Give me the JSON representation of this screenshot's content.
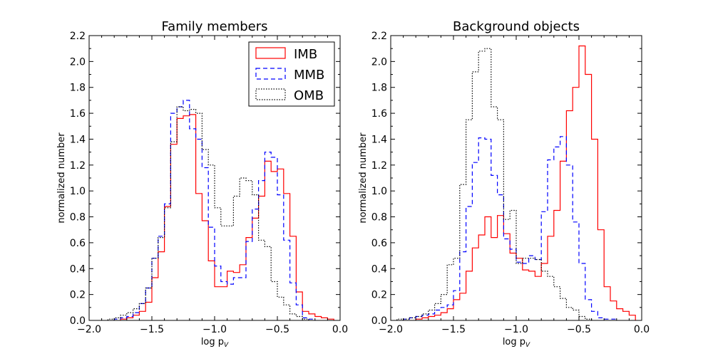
{
  "chart_data": [
    {
      "type": "histogram-step",
      "title": "Family members",
      "xlabel": "log p",
      "xlabel_sub": "V",
      "ylabel": "normalized number",
      "xlim": [
        -2.0,
        0.0
      ],
      "ylim": [
        0.0,
        2.2
      ],
      "xticks": [
        "−2.0",
        "−1.5",
        "−1.0",
        "−0.5",
        "0.0"
      ],
      "xtick_values": [
        -2.0,
        -1.5,
        -1.0,
        -0.5,
        0.0
      ],
      "yticks": [
        "0.0",
        "0.2",
        "0.4",
        "0.6",
        "0.8",
        "1.0",
        "1.2",
        "1.4",
        "1.6",
        "1.8",
        "2.0",
        "2.2"
      ],
      "ytick_values": [
        0.0,
        0.2,
        0.4,
        0.6,
        0.8,
        1.0,
        1.2,
        1.4,
        1.6,
        1.8,
        2.0,
        2.2
      ],
      "legend": {
        "position": "upper right",
        "entries": [
          "IMB",
          "MMB",
          "OMB"
        ]
      },
      "series": [
        {
          "name": "IMB",
          "color": "#ff0000",
          "dash": "solid",
          "edges": [
            -1.75,
            -1.7,
            -1.65,
            -1.6,
            -1.55,
            -1.5,
            -1.45,
            -1.4,
            -1.35,
            -1.3,
            -1.25,
            -1.2,
            -1.15,
            -1.1,
            -1.05,
            -1.0,
            -0.95,
            -0.9,
            -0.85,
            -0.8,
            -0.75,
            -0.7,
            -0.65,
            -0.6,
            -0.55,
            -0.5,
            -0.45,
            -0.4,
            -0.35,
            -0.3,
            -0.25,
            -0.2,
            -0.15,
            -0.1,
            -0.05
          ],
          "values": [
            0.01,
            0.02,
            0.04,
            0.07,
            0.14,
            0.33,
            0.53,
            0.88,
            1.36,
            1.56,
            1.58,
            1.59,
            0.98,
            0.77,
            0.46,
            0.26,
            0.26,
            0.38,
            0.37,
            0.43,
            0.64,
            0.79,
            0.96,
            1.23,
            1.15,
            1.17,
            0.98,
            0.65,
            0.22,
            0.07,
            0.05,
            0.03,
            0.02,
            0.01
          ]
        },
        {
          "name": "MMB",
          "color": "#0000ff",
          "dash": "dashed",
          "edges": [
            -1.8,
            -1.75,
            -1.7,
            -1.65,
            -1.6,
            -1.55,
            -1.5,
            -1.45,
            -1.4,
            -1.35,
            -1.3,
            -1.25,
            -1.2,
            -1.15,
            -1.1,
            -1.05,
            -1.0,
            -0.95,
            -0.9,
            -0.85,
            -0.8,
            -0.75,
            -0.7,
            -0.65,
            -0.6,
            -0.55,
            -0.5,
            -0.45,
            -0.4,
            -0.35,
            -0.3,
            -0.25,
            -0.2
          ],
          "values": [
            0.01,
            0.02,
            0.03,
            0.06,
            0.13,
            0.25,
            0.48,
            0.65,
            0.9,
            1.6,
            1.65,
            1.7,
            1.48,
            1.4,
            1.18,
            0.72,
            0.42,
            0.3,
            0.28,
            0.33,
            0.33,
            0.61,
            0.86,
            1.08,
            1.3,
            1.26,
            0.97,
            0.62,
            0.29,
            0.12,
            0.02,
            0.01
          ]
        },
        {
          "name": "OMB",
          "color": "#000000",
          "dash": "dotted",
          "edges": [
            -1.85,
            -1.8,
            -1.75,
            -1.7,
            -1.65,
            -1.6,
            -1.55,
            -1.5,
            -1.45,
            -1.4,
            -1.35,
            -1.3,
            -1.25,
            -1.2,
            -1.15,
            -1.1,
            -1.05,
            -1.0,
            -0.95,
            -0.9,
            -0.85,
            -0.8,
            -0.75,
            -0.7,
            -0.65,
            -0.6,
            -0.55,
            -0.5,
            -0.45,
            -0.4,
            -0.35,
            -0.3,
            -0.25
          ],
          "values": [
            0.01,
            0.02,
            0.04,
            0.06,
            0.09,
            0.13,
            0.25,
            0.48,
            0.64,
            0.87,
            1.38,
            1.65,
            1.62,
            1.63,
            1.6,
            1.32,
            1.2,
            0.87,
            0.73,
            0.73,
            0.96,
            1.1,
            1.08,
            0.97,
            0.62,
            0.57,
            0.3,
            0.18,
            0.12,
            0.05,
            0.03,
            0.01
          ]
        }
      ]
    },
    {
      "type": "histogram-step",
      "title": "Background objects",
      "xlabel": "log p",
      "xlabel_sub": "V",
      "ylabel": "normalized number",
      "xlim": [
        -2.0,
        0.0
      ],
      "ylim": [
        0.0,
        2.2
      ],
      "xticks": [
        "−2.0",
        "−1.5",
        "−1.0",
        "−0.5",
        "0.0"
      ],
      "xtick_values": [
        -2.0,
        -1.5,
        -1.0,
        -0.5,
        0.0
      ],
      "yticks": [
        "0.0",
        "0.2",
        "0.4",
        "0.6",
        "0.8",
        "1.0",
        "1.2",
        "1.4",
        "1.6",
        "1.8",
        "2.0",
        "2.2"
      ],
      "ytick_values": [
        0.0,
        0.2,
        0.4,
        0.6,
        0.8,
        1.0,
        1.2,
        1.4,
        1.6,
        1.8,
        2.0,
        2.2
      ],
      "legend": null,
      "series": [
        {
          "name": "IMB",
          "color": "#ff0000",
          "dash": "solid",
          "edges": [
            -1.8,
            -1.75,
            -1.7,
            -1.65,
            -1.6,
            -1.55,
            -1.5,
            -1.45,
            -1.4,
            -1.35,
            -1.3,
            -1.25,
            -1.2,
            -1.15,
            -1.1,
            -1.05,
            -1.0,
            -0.95,
            -0.9,
            -0.85,
            -0.8,
            -0.75,
            -0.7,
            -0.65,
            -0.6,
            -0.55,
            -0.5,
            -0.45,
            -0.4,
            -0.35,
            -0.3,
            -0.25,
            -0.2,
            -0.15,
            -0.1,
            -0.05
          ],
          "values": [
            0.01,
            0.02,
            0.03,
            0.04,
            0.06,
            0.09,
            0.16,
            0.21,
            0.38,
            0.56,
            0.66,
            0.8,
            0.64,
            0.81,
            0.67,
            0.52,
            0.48,
            0.39,
            0.38,
            0.34,
            0.44,
            0.65,
            0.85,
            1.23,
            1.62,
            1.8,
            2.12,
            1.9,
            1.4,
            0.7,
            0.26,
            0.15,
            0.09,
            0.07,
            0.04
          ]
        },
        {
          "name": "MMB",
          "color": "#0000ff",
          "dash": "dashed",
          "edges": [
            -1.9,
            -1.85,
            -1.8,
            -1.75,
            -1.7,
            -1.65,
            -1.6,
            -1.55,
            -1.5,
            -1.45,
            -1.4,
            -1.35,
            -1.3,
            -1.25,
            -1.2,
            -1.15,
            -1.1,
            -1.05,
            -1.0,
            -0.95,
            -0.9,
            -0.85,
            -0.8,
            -0.75,
            -0.7,
            -0.65,
            -0.6,
            -0.55,
            -0.5,
            -0.45,
            -0.4,
            -0.35,
            -0.3,
            -0.25,
            -0.2
          ],
          "values": [
            0.01,
            0.02,
            0.03,
            0.04,
            0.05,
            0.08,
            0.1,
            0.12,
            0.23,
            0.53,
            0.88,
            1.22,
            1.41,
            1.4,
            1.12,
            0.97,
            0.63,
            0.55,
            0.45,
            0.44,
            0.5,
            0.47,
            0.84,
            1.24,
            1.34,
            1.42,
            1.2,
            0.76,
            0.44,
            0.16,
            0.07,
            0.02,
            0.01,
            0.01
          ]
        },
        {
          "name": "OMB",
          "color": "#000000",
          "dash": "dotted",
          "edges": [
            -1.95,
            -1.9,
            -1.85,
            -1.8,
            -1.75,
            -1.7,
            -1.65,
            -1.6,
            -1.55,
            -1.5,
            -1.45,
            -1.4,
            -1.35,
            -1.3,
            -1.25,
            -1.2,
            -1.15,
            -1.1,
            -1.05,
            -1.0,
            -0.95,
            -0.9,
            -0.85,
            -0.8,
            -0.75,
            -0.7,
            -0.65,
            -0.6,
            -0.55,
            -0.5,
            -0.45,
            -0.4
          ],
          "values": [
            0.01,
            0.01,
            0.02,
            0.03,
            0.05,
            0.08,
            0.13,
            0.2,
            0.43,
            0.48,
            1.05,
            1.55,
            1.92,
            2.08,
            2.1,
            1.65,
            1.55,
            0.78,
            0.85,
            0.44,
            0.48,
            0.48,
            0.47,
            0.38,
            0.34,
            0.26,
            0.17,
            0.1,
            0.08,
            0.03,
            0.01
          ]
        }
      ]
    }
  ]
}
